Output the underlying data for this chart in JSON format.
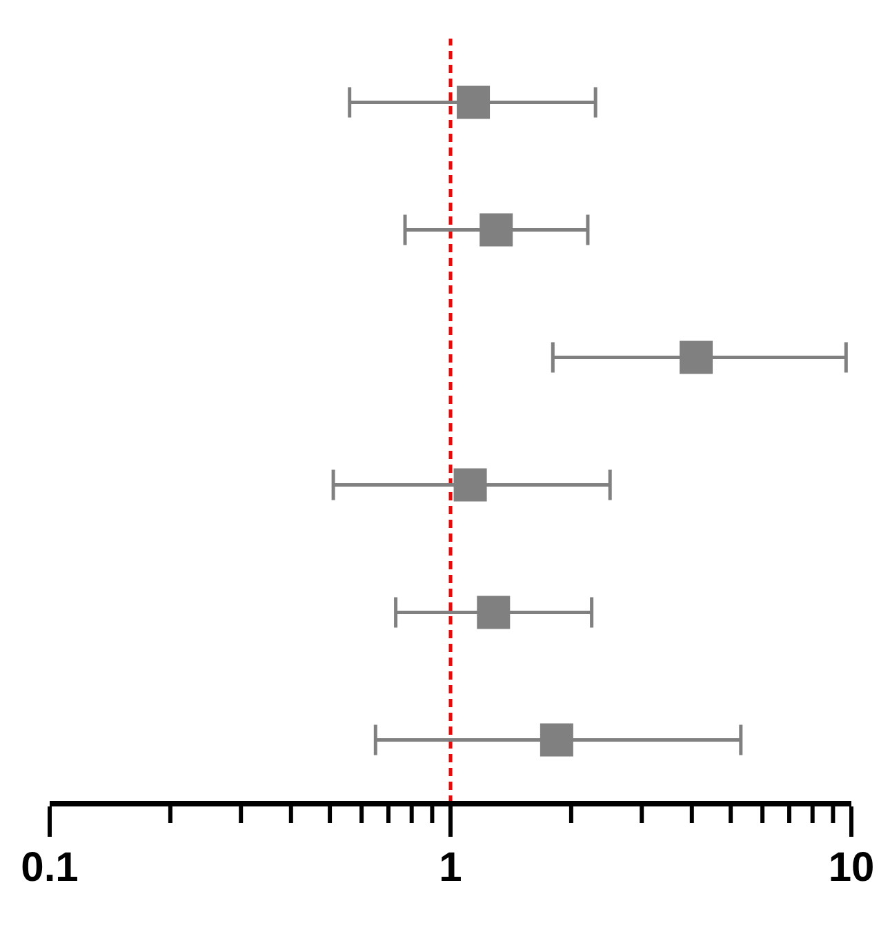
{
  "chart_data": {
    "type": "scatter",
    "orientation": "horizontal",
    "log": "x",
    "categories": [
      null,
      null,
      null,
      null,
      null,
      null
    ],
    "series": [
      {
        "color": "#808080",
        "values": [
          1.14,
          1.3,
          4.1,
          1.12,
          1.28,
          1.84
        ],
        "errors": [
          [
            0.56,
            2.3
          ],
          [
            0.77,
            2.2
          ],
          [
            1.8,
            9.7
          ],
          [
            0.51,
            2.5
          ],
          [
            0.73,
            2.25
          ],
          [
            0.65,
            5.3
          ]
        ]
      }
    ],
    "marker": "square",
    "xlim": [
      0.1,
      10
    ],
    "xticks": [
      0.1,
      {
        "value": 0.2,
        "label": null
      },
      {
        "value": 0.3,
        "label": null
      },
      {
        "value": 0.4,
        "label": null
      },
      {
        "value": 0.5,
        "label": null
      },
      {
        "value": 0.6,
        "label": null
      },
      {
        "value": 0.7,
        "label": null
      },
      {
        "value": 0.8,
        "label": null
      },
      {
        "value": 0.9,
        "label": null
      },
      1,
      {
        "value": 2,
        "label": null
      },
      {
        "value": 3,
        "label": null
      },
      {
        "value": 4,
        "label": null
      },
      {
        "value": 5,
        "label": null
      },
      {
        "value": 6,
        "label": null
      },
      {
        "value": 7,
        "label": null
      },
      {
        "value": 8,
        "label": null
      },
      {
        "value": 9,
        "label": null
      },
      10
    ],
    "ref_lines": [
      {
        "axis": "x",
        "value": 1,
        "color": "#ff0000",
        "line_style": "dashed"
      }
    ],
    "grid": false,
    "legend": false
  }
}
